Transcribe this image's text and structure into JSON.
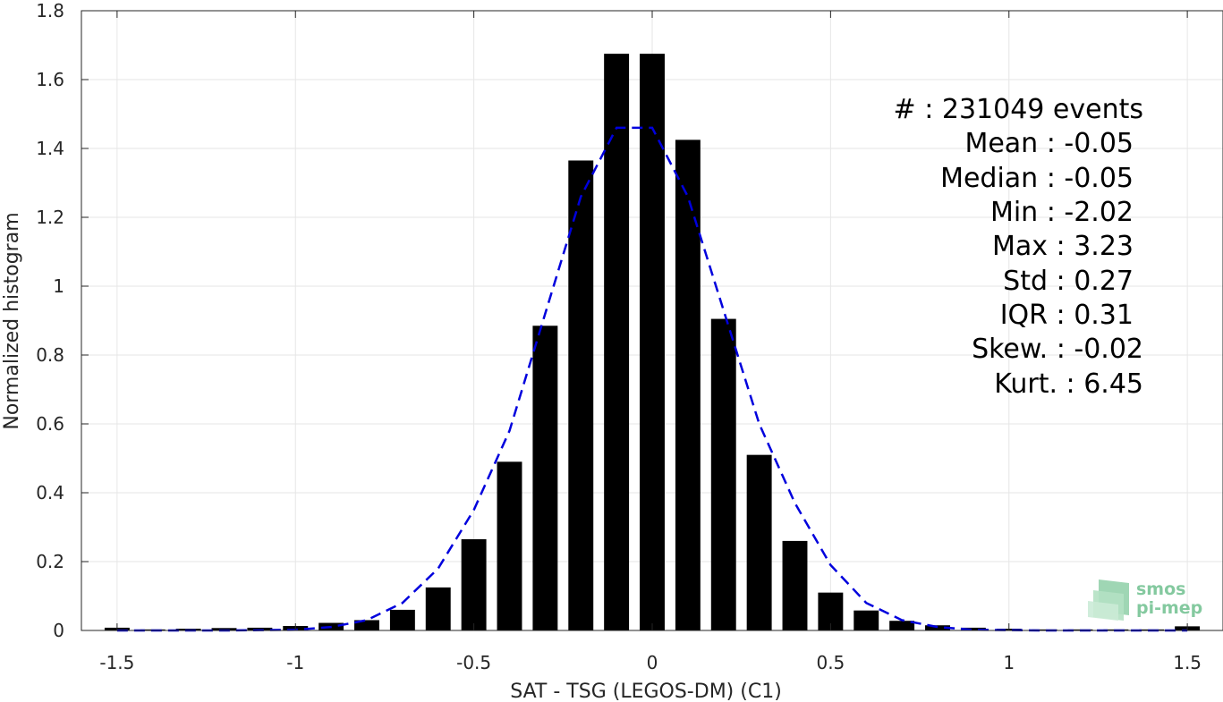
{
  "chart_data": {
    "type": "bar",
    "xlabel": "SAT - TSG (LEGOS-DM) (C1)",
    "ylabel": "Normalized histogram",
    "xlim": [
      -1.6,
      1.6
    ],
    "ylim": [
      0,
      1.8
    ],
    "xticks": [
      -1.5,
      -1,
      -0.5,
      0,
      0.5,
      1,
      1.5
    ],
    "xtick_labels": [
      "-1.5",
      "-1",
      "-0.5",
      "0",
      "0.5",
      "1",
      "1.5"
    ],
    "yticks": [
      0,
      0.2,
      0.4,
      0.6,
      0.8,
      1,
      1.2,
      1.4,
      1.6,
      1.8
    ],
    "ytick_labels": [
      "0",
      "0.2",
      "0.4",
      "0.6",
      "0.8",
      "1",
      "1.2",
      "1.4",
      "1.6",
      "1.8"
    ],
    "grid": true,
    "bar_width": 0.07,
    "bars": {
      "x": [
        -1.5,
        -1.4,
        -1.3,
        -1.2,
        -1.1,
        -1.0,
        -0.9,
        -0.8,
        -0.7,
        -0.6,
        -0.5,
        -0.4,
        -0.3,
        -0.2,
        -0.1,
        0.0,
        0.1,
        0.2,
        0.3,
        0.4,
        0.5,
        0.6,
        0.7,
        0.8,
        0.9,
        1.0,
        1.1,
        1.2,
        1.3,
        1.4,
        1.5
      ],
      "values": [
        0.008,
        0.003,
        0.005,
        0.007,
        0.008,
        0.013,
        0.022,
        0.03,
        0.06,
        0.125,
        0.265,
        0.49,
        0.885,
        1.365,
        1.675,
        1.675,
        1.425,
        0.905,
        0.51,
        0.26,
        0.11,
        0.058,
        0.028,
        0.015,
        0.008,
        0.005,
        0.003,
        0.003,
        0.003,
        0.003,
        0.012
      ],
      "color": "#000000"
    },
    "fit_curve": {
      "style": "dashed",
      "color": "#0000dd",
      "x": [
        -1.5,
        -1.4,
        -1.3,
        -1.2,
        -1.1,
        -1.0,
        -0.9,
        -0.8,
        -0.7,
        -0.6,
        -0.5,
        -0.4,
        -0.3,
        -0.2,
        -0.1,
        0.0,
        0.1,
        0.2,
        0.3,
        0.4,
        0.5,
        0.6,
        0.7,
        0.8,
        0.9,
        1.0,
        1.1,
        1.2,
        1.3,
        1.4,
        1.5
      ],
      "values": [
        0.0,
        0.0,
        0.0,
        0.0,
        0.001,
        0.002,
        0.01,
        0.03,
        0.08,
        0.18,
        0.35,
        0.58,
        0.92,
        1.26,
        1.46,
        1.46,
        1.26,
        0.93,
        0.6,
        0.37,
        0.19,
        0.08,
        0.03,
        0.01,
        0.002,
        0.001,
        0.0,
        0.0,
        0.0,
        0.0,
        0.0
      ]
    },
    "annotations": [
      "#  : 231049 events",
      "Mean : -0.05",
      "Median : -0.05",
      "Min : -2.02",
      "Max : 3.23",
      "Std : 0.27",
      "IQR : 0.31",
      "Skew. : -0.02",
      "Kurt. : 6.45"
    ]
  },
  "logo": {
    "line1": "smos",
    "line2": "pi-mep",
    "color": "#6fc08f"
  }
}
